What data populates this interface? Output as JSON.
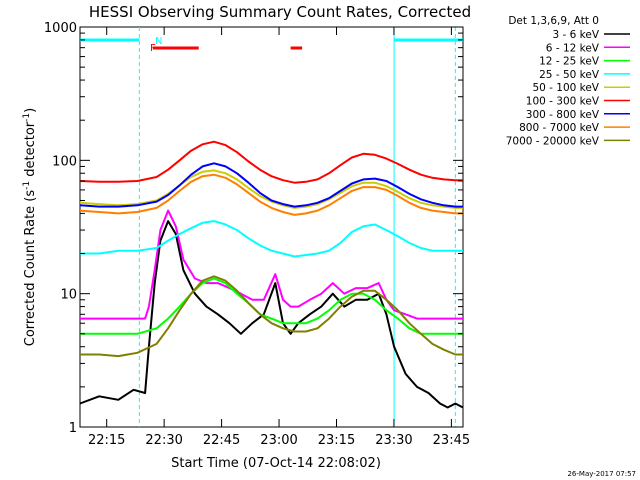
{
  "chart_data": {
    "type": "line",
    "title": "HESSI Observing Summary Count Rates, Corrected",
    "xlabel": "Start Time (07-Oct-14 22:08:02)",
    "ylabel": "Corrected Count Rate (s⁻¹ detector⁻¹)",
    "ylabel_main": "Corrected Count Rate (s",
    "ylabel_sup1": "-1",
    "ylabel_mid": " detector",
    "ylabel_sup2": "-1",
    "ylabel_end": ")",
    "x_unit": "minutes since 22:08:02",
    "xlim": [
      0,
      100
    ],
    "ylim": [
      1,
      1000
    ],
    "yscale": "log",
    "grid": false,
    "xticks": [
      {
        "label": "22:15",
        "value": 6.97
      },
      {
        "label": "22:30",
        "value": 21.97
      },
      {
        "label": "22:45",
        "value": 36.97
      },
      {
        "label": "23:00",
        "value": 51.97
      },
      {
        "label": "23:15",
        "value": 66.97
      },
      {
        "label": "23:30",
        "value": 81.97
      },
      {
        "label": "23:45",
        "value": 96.97
      }
    ],
    "yticks": [
      {
        "label": "1",
        "value": 1
      },
      {
        "label": "10",
        "value": 10
      },
      {
        "label": "100",
        "value": 100
      },
      {
        "label": "1000",
        "value": 1000
      }
    ],
    "legend_position": "right",
    "legend_title": "Det 1,3,6,9, Att 0",
    "series": [
      {
        "name": "3 - 6 keV",
        "color": "#000000",
        "x": [
          0,
          5,
          10,
          14,
          17,
          18,
          19.5,
          21,
          23,
          25,
          27,
          30,
          33,
          36,
          39,
          42,
          45,
          48,
          51,
          53,
          55,
          57,
          60,
          63,
          66,
          69,
          72,
          75,
          78,
          80,
          82,
          85,
          88,
          91,
          94,
          96,
          98,
          100
        ],
        "y": [
          1.5,
          1.7,
          1.6,
          1.9,
          1.8,
          4,
          12,
          25,
          35,
          28,
          15,
          10,
          8,
          7,
          6,
          5,
          6,
          7,
          12,
          6,
          5,
          6,
          7,
          8,
          10,
          8,
          9,
          9,
          10,
          7,
          4,
          2.5,
          2,
          1.8,
          1.5,
          1.4,
          1.5,
          1.4
        ]
      },
      {
        "name": "6 - 12 keV",
        "color": "#ff00ff",
        "x": [
          0,
          5,
          10,
          14,
          17,
          18,
          19.5,
          21,
          23,
          25,
          27,
          30,
          33,
          36,
          39,
          42,
          45,
          48,
          51,
          53,
          55,
          57,
          60,
          63,
          66,
          69,
          72,
          75,
          78,
          80,
          82,
          85,
          88,
          91,
          94,
          96,
          98,
          100
        ],
        "y": [
          6.5,
          6.5,
          6.5,
          6.5,
          6.5,
          8,
          15,
          30,
          42,
          32,
          18,
          13,
          12,
          12,
          11,
          10,
          9,
          9,
          14,
          9,
          8,
          8,
          9,
          10,
          12,
          10,
          11,
          11,
          12,
          9,
          7.5,
          7,
          6.5,
          6.5,
          6.5,
          6.5,
          6.5,
          6.5
        ]
      },
      {
        "name": "12 - 25 keV",
        "color": "#00ff00",
        "x": [
          0,
          5,
          10,
          15,
          20,
          23,
          26,
          29,
          32,
          35,
          38,
          41,
          44,
          47,
          50,
          53,
          56,
          59,
          62,
          65,
          68,
          71,
          74,
          77,
          80,
          83,
          86,
          89,
          92,
          95,
          98,
          100
        ],
        "y": [
          5,
          5,
          5,
          5,
          5.5,
          6.5,
          8,
          10,
          12,
          13,
          12,
          10,
          8.5,
          7,
          6.5,
          6,
          6,
          6,
          6.5,
          7.5,
          9,
          10,
          10,
          9,
          7.5,
          6.5,
          5.5,
          5,
          5,
          5,
          5,
          5
        ]
      },
      {
        "name": "25 - 50 keV",
        "color": "#00ffff",
        "x": [
          0,
          5,
          10,
          15,
          20,
          23,
          26,
          29,
          32,
          35,
          38,
          41,
          44,
          47,
          50,
          53,
          56,
          59,
          62,
          65,
          68,
          71,
          74,
          77,
          80,
          83,
          86,
          89,
          92,
          95,
          98,
          100
        ],
        "y": [
          20,
          20,
          21,
          21,
          22,
          25,
          28,
          31,
          34,
          35,
          33,
          30,
          26,
          23,
          21,
          20,
          19,
          19.5,
          20,
          21,
          24,
          29,
          32,
          33,
          30,
          27,
          24,
          22,
          21,
          21,
          21,
          21
        ]
      },
      {
        "name": "50 - 100 keV",
        "color": "#cccc00",
        "x": [
          0,
          5,
          10,
          15,
          20,
          23,
          26,
          29,
          32,
          35,
          38,
          41,
          44,
          47,
          50,
          53,
          56,
          59,
          62,
          65,
          68,
          71,
          74,
          77,
          80,
          83,
          86,
          89,
          92,
          95,
          98,
          100
        ],
        "y": [
          48,
          47,
          46,
          47,
          50,
          56,
          65,
          75,
          82,
          84,
          80,
          72,
          62,
          54,
          49,
          46,
          44,
          45,
          47,
          51,
          57,
          64,
          68,
          68,
          64,
          58,
          52,
          48,
          46,
          45,
          44,
          44
        ]
      },
      {
        "name": "100 - 300 keV",
        "color": "#ff0000",
        "x": [
          0,
          5,
          10,
          15,
          20,
          23,
          26,
          29,
          32,
          35,
          38,
          41,
          44,
          47,
          50,
          53,
          56,
          59,
          62,
          65,
          68,
          71,
          74,
          77,
          80,
          83,
          86,
          89,
          92,
          95,
          98,
          100
        ],
        "y": [
          70,
          69,
          69,
          70,
          75,
          85,
          100,
          118,
          132,
          138,
          130,
          115,
          98,
          85,
          76,
          71,
          68,
          69,
          72,
          80,
          92,
          105,
          112,
          110,
          103,
          94,
          85,
          78,
          74,
          72,
          71,
          71
        ]
      },
      {
        "name": "300 - 800 keV",
        "color": "#0000ff",
        "x": [
          0,
          5,
          10,
          15,
          20,
          23,
          26,
          29,
          32,
          35,
          38,
          41,
          44,
          47,
          50,
          53,
          56,
          59,
          62,
          65,
          68,
          71,
          74,
          77,
          80,
          83,
          86,
          89,
          92,
          95,
          98,
          100
        ],
        "y": [
          46,
          45,
          45,
          46,
          49,
          55,
          65,
          78,
          90,
          95,
          90,
          80,
          68,
          57,
          50,
          47,
          45,
          46,
          48,
          52,
          59,
          67,
          72,
          73,
          70,
          63,
          56,
          51,
          48,
          46,
          45,
          45
        ]
      },
      {
        "name": "800 - 7000 keV",
        "color": "#ff8000",
        "x": [
          0,
          5,
          10,
          15,
          20,
          23,
          26,
          29,
          32,
          35,
          38,
          41,
          44,
          47,
          50,
          53,
          56,
          59,
          62,
          65,
          68,
          71,
          74,
          77,
          80,
          83,
          86,
          89,
          92,
          95,
          98,
          100
        ],
        "y": [
          42,
          41,
          40,
          41,
          44,
          50,
          59,
          69,
          76,
          78,
          74,
          66,
          57,
          49,
          44,
          41,
          39,
          40,
          42,
          46,
          52,
          59,
          63,
          63,
          60,
          54,
          48,
          44,
          42,
          41,
          40,
          40
        ]
      },
      {
        "name": "7000 - 20000 keV",
        "color": "#808000",
        "x": [
          0,
          5,
          10,
          15,
          20,
          23,
          26,
          29,
          32,
          35,
          38,
          41,
          44,
          47,
          50,
          53,
          56,
          59,
          62,
          65,
          68,
          71,
          74,
          77,
          80,
          83,
          86,
          89,
          92,
          95,
          98,
          100
        ],
        "y": [
          3.5,
          3.5,
          3.4,
          3.6,
          4.2,
          5.5,
          7.5,
          10,
          12.5,
          13.5,
          12.5,
          10.5,
          8.5,
          7,
          6,
          5.5,
          5.2,
          5.2,
          5.5,
          6.5,
          8,
          9.5,
          10.5,
          10.5,
          9,
          7.5,
          6,
          5,
          4.2,
          3.8,
          3.5,
          3.5
        ]
      }
    ],
    "flag_labels": [
      {
        "label": "N",
        "color": "#00ffff"
      },
      {
        "label": "F",
        "color": "#ff0000"
      }
    ],
    "flag_bars": [
      {
        "row": "N",
        "color": "#00ffff",
        "start": 0,
        "end": 15.5
      },
      {
        "row": "N",
        "color": "#00ffff",
        "start": 82,
        "end": 100
      },
      {
        "row": "F",
        "color": "#ff0000",
        "start": 19,
        "end": 31
      },
      {
        "row": "F",
        "color": "#ff0000",
        "start": 55,
        "end": 58
      }
    ],
    "vertical_markers": [
      {
        "value": 15.5,
        "style": "dashed",
        "color": "#00ffff"
      },
      {
        "value": 82,
        "style": "solid",
        "color": "#00ffff"
      },
      {
        "value": 98,
        "style": "dashed",
        "color": "#00ffff"
      }
    ],
    "timestamp": "26-May-2017 07:57"
  }
}
